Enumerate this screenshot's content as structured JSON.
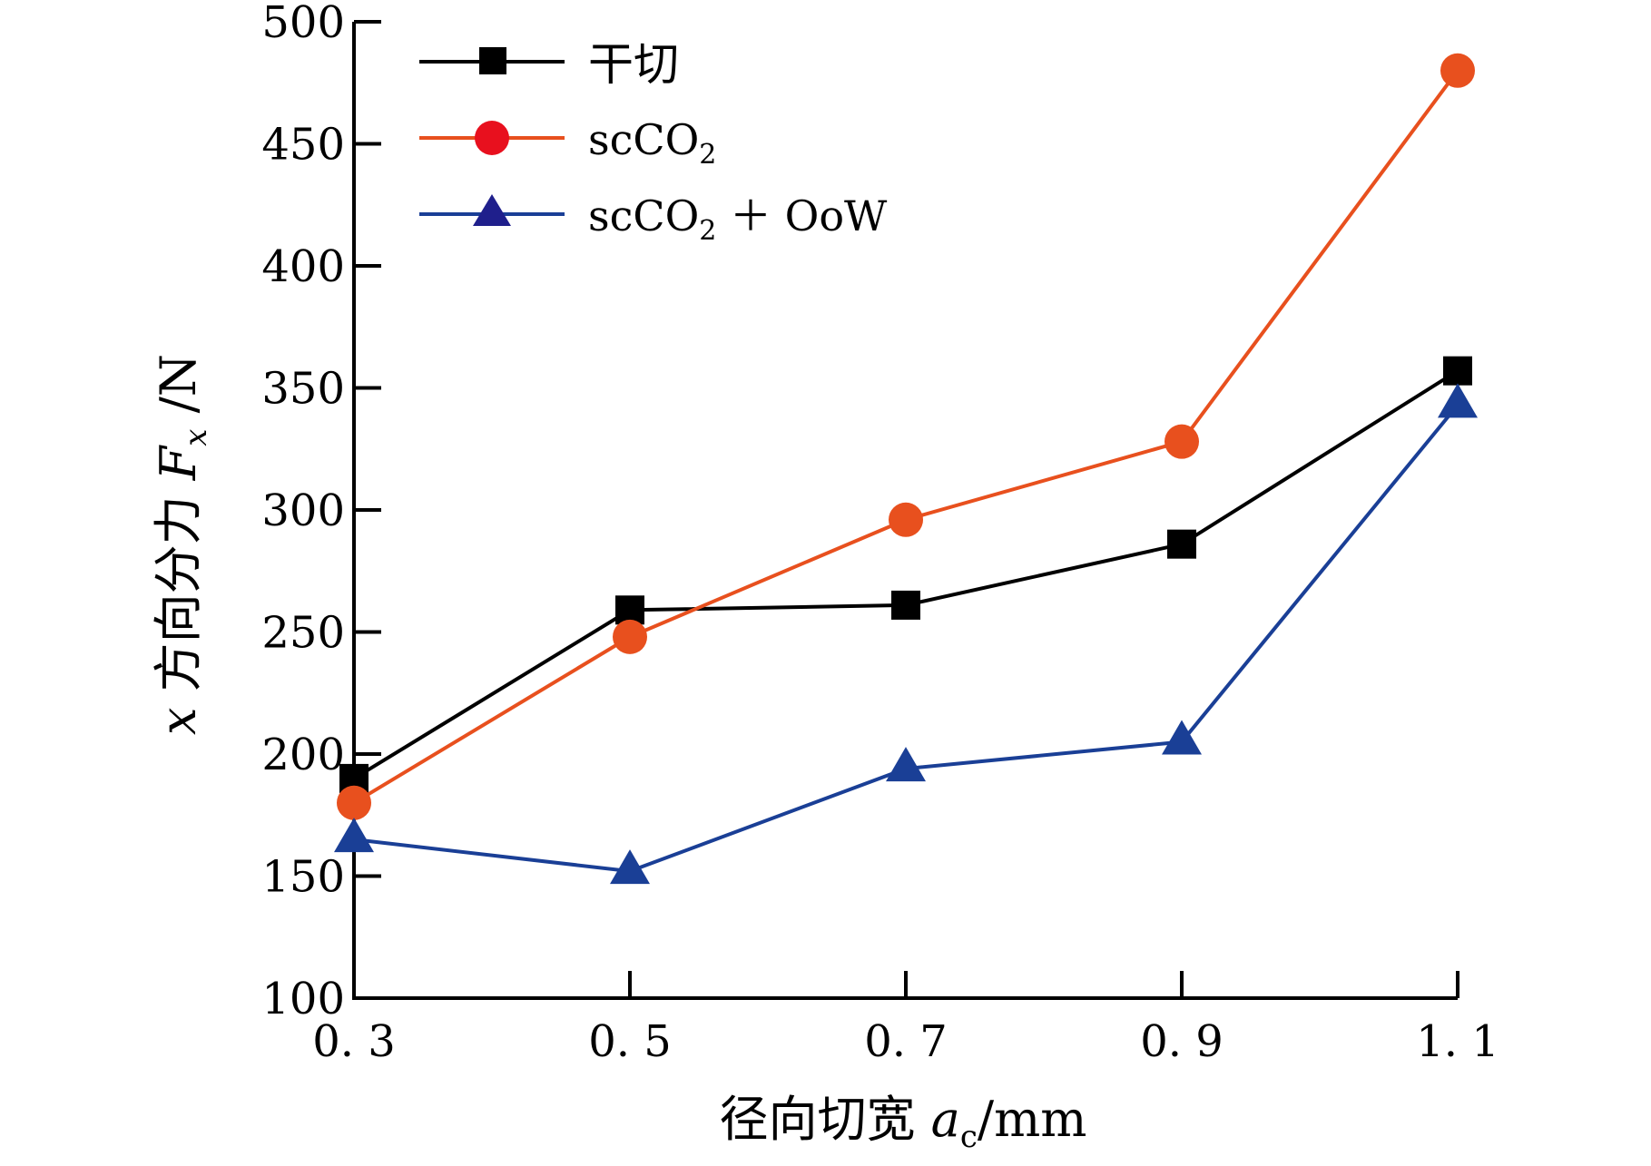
{
  "chart_data": {
    "type": "line",
    "title": "",
    "xlabel": "径向切宽 a_c/mm",
    "xlabel_parts": {
      "prefix": "径向切宽 ",
      "var": "a",
      "sub": "c",
      "suffix": "/mm"
    },
    "ylabel": "x 方向分力 F_x/N",
    "ylabel_parts": {
      "prefix": "x",
      "mid": " 方向分力 ",
      "var": "F",
      "sub": "x",
      "suffix": " /N"
    },
    "x": [
      0.3,
      0.5,
      0.7,
      0.9,
      1.1
    ],
    "x_tick_labels": [
      "0. 3",
      "0. 5",
      "0. 7",
      "0. 9",
      "1. 1"
    ],
    "xlim": [
      0.3,
      1.1
    ],
    "ylim": [
      100,
      500
    ],
    "y_ticks": [
      100,
      150,
      200,
      250,
      300,
      350,
      400,
      450,
      500
    ],
    "y_tick_labels": [
      "100",
      "150",
      "200",
      "250",
      "300",
      "350",
      "400",
      "450",
      "500"
    ],
    "grid": false,
    "legend_position": "top-left",
    "series": [
      {
        "name": "干切",
        "legend_parts": {
          "main": "干切",
          "sub": "",
          "tail": ""
        },
        "marker": "square",
        "color": "#000000",
        "values": [
          190,
          259,
          261,
          286,
          357
        ]
      },
      {
        "name": "scCO2",
        "legend_parts": {
          "main": "scCO",
          "sub": "2",
          "tail": ""
        },
        "marker": "circle",
        "color": "#e8501e",
        "values": [
          180,
          248,
          296,
          328,
          480
        ]
      },
      {
        "name": "scCO2 + OoW",
        "legend_parts": {
          "main": "scCO",
          "sub": "2",
          "tail": " ＋ OoW"
        },
        "marker": "triangle",
        "color": "#1a3f96",
        "values": [
          165,
          152,
          194,
          205,
          343
        ]
      }
    ]
  },
  "colors": {
    "axis": "#000000",
    "circle_marker_fill": "#e8501e",
    "legend_circle_fill": "#e8101e",
    "triangle_marker_fill": "#1a3f96",
    "legend_triangle_fill": "#1f1f8c"
  }
}
